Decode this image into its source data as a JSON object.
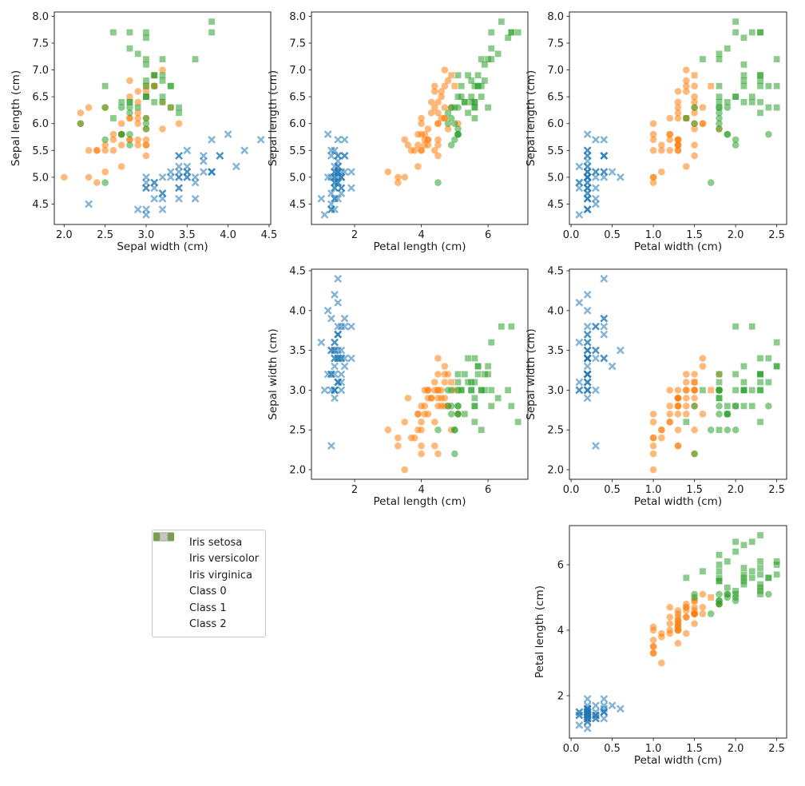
{
  "chart_data": {
    "type": "scatter",
    "description": "Iris dataset pair plot: color = true species, marker = cluster class",
    "alpha": 0.55,
    "species_names": [
      "Iris setosa",
      "Iris versicolor",
      "Iris virginica"
    ],
    "species_colors": [
      "#1f77b4",
      "#ff7f0e",
      "#2ca02c"
    ],
    "class_markers": [
      "circle",
      "x",
      "square"
    ],
    "features": {
      "sepal_length": {
        "label": "Sepal length (cm)",
        "lim": [
          4.12,
          8.08
        ],
        "ticks": [
          4.5,
          5.0,
          5.5,
          6.0,
          6.5,
          7.0,
          7.5,
          8.0
        ],
        "tick_labels": [
          "4.5",
          "5.0",
          "5.5",
          "6.0",
          "6.5",
          "7.0",
          "7.5",
          "8.0"
        ]
      },
      "sepal_width": {
        "label": "Sepal width (cm)",
        "lim": [
          1.88,
          4.52
        ],
        "ticks": [
          2.0,
          2.5,
          3.0,
          3.5,
          4.0,
          4.5
        ],
        "tick_labels": [
          "2.0",
          "2.5",
          "3.0",
          "3.5",
          "4.0",
          "4.5"
        ]
      },
      "petal_length": {
        "label": "Petal length (cm)",
        "lim": [
          0.705,
          7.195
        ],
        "ticks": [
          2,
          4,
          6
        ],
        "tick_labels": [
          "2",
          "4",
          "6"
        ]
      },
      "petal_width": {
        "label": "Petal width (cm)",
        "lim": [
          -0.02,
          2.62
        ],
        "ticks": [
          0.0,
          0.5,
          1.0,
          1.5,
          2.0,
          2.5
        ],
        "tick_labels": [
          "0.0",
          "0.5",
          "1.0",
          "1.5",
          "2.0",
          "2.5"
        ]
      }
    },
    "panels": [
      {
        "x_feature": "sepal_width",
        "y_feature": "sepal_length"
      },
      {
        "x_feature": "petal_length",
        "y_feature": "sepal_length"
      },
      {
        "x_feature": "petal_width",
        "y_feature": "sepal_length"
      },
      {
        "x_feature": "petal_length",
        "y_feature": "sepal_width"
      },
      {
        "x_feature": "petal_width",
        "y_feature": "sepal_width"
      },
      {
        "x_feature": "petal_width",
        "y_feature": "petal_length"
      }
    ],
    "legend": {
      "entries": [
        {
          "label": "Iris setosa",
          "type": "patch",
          "color": "#1f77b4"
        },
        {
          "label": "Iris versicolor",
          "type": "patch",
          "color": "#ff7f0e"
        },
        {
          "label": "Iris virginica",
          "type": "patch",
          "color": "#2ca02c"
        },
        {
          "label": "Class 0",
          "type": "marker",
          "marker": "circle",
          "color": "#c6c6c6"
        },
        {
          "label": "Class 1",
          "type": "marker",
          "marker": "x",
          "color": "#c6c6c6"
        },
        {
          "label": "Class 2",
          "type": "marker",
          "marker": "square",
          "color": "#c6c6c6"
        }
      ]
    },
    "points": {
      "sepal_length": [
        5.1,
        4.9,
        4.7,
        4.6,
        5.0,
        5.4,
        4.6,
        5.0,
        4.4,
        4.9,
        5.4,
        4.8,
        4.8,
        4.3,
        5.8,
        5.7,
        5.4,
        5.1,
        5.7,
        5.1,
        5.4,
        5.1,
        4.6,
        5.1,
        4.8,
        5.0,
        5.0,
        5.2,
        5.2,
        4.7,
        4.8,
        5.4,
        5.2,
        5.5,
        4.9,
        5.0,
        5.5,
        4.9,
        4.4,
        5.1,
        5.0,
        4.5,
        4.4,
        5.0,
        5.1,
        4.8,
        5.1,
        4.6,
        5.3,
        5.0,
        7.0,
        6.4,
        6.9,
        5.5,
        6.5,
        5.7,
        6.3,
        4.9,
        6.6,
        5.2,
        5.0,
        5.9,
        6.0,
        6.1,
        5.6,
        6.7,
        5.6,
        5.8,
        6.2,
        5.6,
        5.9,
        6.1,
        6.3,
        6.1,
        6.4,
        6.6,
        6.8,
        6.7,
        6.0,
        5.7,
        5.5,
        5.5,
        5.8,
        6.0,
        5.4,
        6.0,
        6.7,
        6.3,
        5.6,
        5.5,
        5.5,
        6.1,
        5.8,
        5.0,
        5.6,
        5.7,
        5.7,
        6.2,
        5.1,
        5.7,
        6.3,
        5.8,
        7.1,
        6.3,
        6.5,
        7.6,
        4.9,
        7.3,
        6.7,
        7.2,
        6.5,
        6.4,
        6.8,
        5.7,
        5.8,
        6.4,
        6.5,
        7.7,
        7.7,
        6.0,
        6.9,
        5.6,
        7.7,
        6.3,
        6.7,
        7.2,
        6.2,
        6.1,
        6.4,
        7.2,
        7.4,
        7.9,
        6.4,
        6.3,
        6.1,
        7.7,
        6.3,
        6.4,
        6.0,
        6.9,
        6.7,
        6.9,
        5.8,
        6.8,
        6.7,
        6.7,
        6.3,
        6.5,
        6.2,
        5.9
      ],
      "sepal_width": [
        3.5,
        3.0,
        3.2,
        3.1,
        3.6,
        3.9,
        3.4,
        3.4,
        2.9,
        3.1,
        3.7,
        3.4,
        3.0,
        3.0,
        4.0,
        4.4,
        3.9,
        3.5,
        3.8,
        3.8,
        3.4,
        3.7,
        3.6,
        3.3,
        3.4,
        3.0,
        3.4,
        3.5,
        3.4,
        3.2,
        3.1,
        3.4,
        4.1,
        4.2,
        3.1,
        3.2,
        3.5,
        3.6,
        3.0,
        3.4,
        3.5,
        2.3,
        3.2,
        3.5,
        3.8,
        3.0,
        3.8,
        3.2,
        3.7,
        3.3,
        3.2,
        3.2,
        3.1,
        2.3,
        2.8,
        2.8,
        3.3,
        2.4,
        2.9,
        2.7,
        2.0,
        3.0,
        2.2,
        2.9,
        2.9,
        3.1,
        3.0,
        2.7,
        2.2,
        2.5,
        3.2,
        2.8,
        2.5,
        2.8,
        2.9,
        3.0,
        2.8,
        3.0,
        2.9,
        2.6,
        2.4,
        2.4,
        2.7,
        2.7,
        3.0,
        3.4,
        3.1,
        2.3,
        3.0,
        2.5,
        2.6,
        3.0,
        2.6,
        2.3,
        2.7,
        3.0,
        2.9,
        2.9,
        2.5,
        2.8,
        3.3,
        2.7,
        3.0,
        2.9,
        3.0,
        3.0,
        2.5,
        2.9,
        2.5,
        3.6,
        3.2,
        2.7,
        3.0,
        2.5,
        2.8,
        3.2,
        3.0,
        3.8,
        2.6,
        2.2,
        3.2,
        2.8,
        2.8,
        2.7,
        3.3,
        3.2,
        2.8,
        3.0,
        2.8,
        3.0,
        2.8,
        3.8,
        2.8,
        2.8,
        2.6,
        3.0,
        3.4,
        3.1,
        3.0,
        3.1,
        3.1,
        3.1,
        2.7,
        3.2,
        3.3,
        3.0,
        2.5,
        3.0,
        3.4,
        3.0
      ],
      "petal_length": [
        1.4,
        1.4,
        1.3,
        1.5,
        1.4,
        1.7,
        1.4,
        1.5,
        1.4,
        1.5,
        1.5,
        1.6,
        1.4,
        1.1,
        1.2,
        1.5,
        1.3,
        1.4,
        1.7,
        1.5,
        1.7,
        1.5,
        1.0,
        1.7,
        1.9,
        1.6,
        1.6,
        1.5,
        1.4,
        1.6,
        1.6,
        1.5,
        1.5,
        1.4,
        1.5,
        1.2,
        1.3,
        1.4,
        1.3,
        1.5,
        1.3,
        1.3,
        1.3,
        1.6,
        1.9,
        1.4,
        1.6,
        1.4,
        1.5,
        1.4,
        4.7,
        4.5,
        4.9,
        4.0,
        4.6,
        4.5,
        4.7,
        3.3,
        4.6,
        3.9,
        3.5,
        4.2,
        4.0,
        4.7,
        3.6,
        4.4,
        4.5,
        4.1,
        4.5,
        3.9,
        4.8,
        4.0,
        4.9,
        4.7,
        4.3,
        4.4,
        4.8,
        5.0,
        4.5,
        3.5,
        3.8,
        3.7,
        3.9,
        5.1,
        4.5,
        4.5,
        4.7,
        4.4,
        4.1,
        4.0,
        4.4,
        4.6,
        4.0,
        3.3,
        4.2,
        4.2,
        4.2,
        4.3,
        3.0,
        4.1,
        6.0,
        5.1,
        5.9,
        5.6,
        5.8,
        6.6,
        4.5,
        6.3,
        5.8,
        6.1,
        5.1,
        5.3,
        5.5,
        5.0,
        5.1,
        5.3,
        5.5,
        6.7,
        6.9,
        5.0,
        5.7,
        4.9,
        6.7,
        4.9,
        5.7,
        6.0,
        4.8,
        4.9,
        5.6,
        5.8,
        6.1,
        6.4,
        5.6,
        5.1,
        5.6,
        6.1,
        5.6,
        5.5,
        4.8,
        5.4,
        5.6,
        5.1,
        5.1,
        5.9,
        5.7,
        5.2,
        5.0,
        5.2,
        5.4,
        5.1
      ],
      "petal_width": [
        0.2,
        0.2,
        0.2,
        0.2,
        0.2,
        0.4,
        0.3,
        0.2,
        0.2,
        0.1,
        0.2,
        0.2,
        0.1,
        0.1,
        0.2,
        0.4,
        0.4,
        0.3,
        0.3,
        0.3,
        0.2,
        0.4,
        0.2,
        0.5,
        0.2,
        0.2,
        0.4,
        0.2,
        0.2,
        0.2,
        0.2,
        0.4,
        0.1,
        0.2,
        0.2,
        0.2,
        0.2,
        0.1,
        0.2,
        0.2,
        0.3,
        0.3,
        0.2,
        0.6,
        0.4,
        0.3,
        0.2,
        0.2,
        0.2,
        0.2,
        1.4,
        1.5,
        1.5,
        1.3,
        1.5,
        1.3,
        1.6,
        1.0,
        1.3,
        1.4,
        1.0,
        1.5,
        1.0,
        1.4,
        1.3,
        1.4,
        1.5,
        1.0,
        1.5,
        1.1,
        1.8,
        1.3,
        1.5,
        1.2,
        1.3,
        1.4,
        1.4,
        1.7,
        1.5,
        1.0,
        1.1,
        1.0,
        1.2,
        1.6,
        1.5,
        1.6,
        1.5,
        1.3,
        1.3,
        1.3,
        1.2,
        1.4,
        1.2,
        1.0,
        1.3,
        1.2,
        1.3,
        1.3,
        1.1,
        1.3,
        2.5,
        1.9,
        2.1,
        1.8,
        2.2,
        2.1,
        1.7,
        1.8,
        1.8,
        2.5,
        2.0,
        1.9,
        2.1,
        2.0,
        2.4,
        2.3,
        1.8,
        2.2,
        2.3,
        1.5,
        2.3,
        2.0,
        2.0,
        1.8,
        2.1,
        1.8,
        1.8,
        1.8,
        2.1,
        1.6,
        1.9,
        2.0,
        2.2,
        1.5,
        1.4,
        2.3,
        2.4,
        1.8,
        1.8,
        2.1,
        2.4,
        2.3,
        1.9,
        2.3,
        2.5,
        2.3,
        1.9,
        2.0,
        2.3,
        1.8
      ],
      "species": [
        0,
        0,
        0,
        0,
        0,
        0,
        0,
        0,
        0,
        0,
        0,
        0,
        0,
        0,
        0,
        0,
        0,
        0,
        0,
        0,
        0,
        0,
        0,
        0,
        0,
        0,
        0,
        0,
        0,
        0,
        0,
        0,
        0,
        0,
        0,
        0,
        0,
        0,
        0,
        0,
        0,
        0,
        0,
        0,
        0,
        0,
        0,
        0,
        0,
        0,
        1,
        1,
        1,
        1,
        1,
        1,
        1,
        1,
        1,
        1,
        1,
        1,
        1,
        1,
        1,
        1,
        1,
        1,
        1,
        1,
        1,
        1,
        1,
        1,
        1,
        1,
        1,
        1,
        1,
        1,
        1,
        1,
        1,
        1,
        1,
        1,
        1,
        1,
        1,
        1,
        1,
        1,
        1,
        1,
        1,
        1,
        1,
        1,
        1,
        1,
        2,
        2,
        2,
        2,
        2,
        2,
        2,
        2,
        2,
        2,
        2,
        2,
        2,
        2,
        2,
        2,
        2,
        2,
        2,
        2,
        2,
        2,
        2,
        2,
        2,
        2,
        2,
        2,
        2,
        2,
        2,
        2,
        2,
        2,
        2,
        2,
        2,
        2,
        2,
        2,
        2,
        2,
        2,
        2,
        2,
        2,
        2,
        2,
        2,
        2
      ],
      "cluster": [
        1,
        1,
        1,
        1,
        1,
        1,
        1,
        1,
        1,
        1,
        1,
        1,
        1,
        1,
        1,
        1,
        1,
        1,
        1,
        1,
        1,
        1,
        1,
        1,
        1,
        1,
        1,
        1,
        1,
        1,
        1,
        1,
        1,
        1,
        1,
        1,
        1,
        1,
        1,
        1,
        1,
        1,
        1,
        1,
        1,
        1,
        1,
        1,
        1,
        1,
        0,
        0,
        2,
        0,
        0,
        0,
        0,
        0,
        0,
        0,
        0,
        0,
        0,
        0,
        0,
        0,
        0,
        0,
        0,
        0,
        0,
        0,
        0,
        0,
        0,
        0,
        0,
        2,
        0,
        0,
        0,
        0,
        0,
        0,
        0,
        0,
        0,
        0,
        0,
        0,
        0,
        0,
        0,
        0,
        0,
        0,
        0,
        0,
        0,
        0,
        2,
        0,
        2,
        2,
        2,
        2,
        0,
        2,
        2,
        2,
        2,
        2,
        2,
        0,
        0,
        2,
        2,
        2,
        2,
        0,
        2,
        0,
        2,
        0,
        2,
        2,
        0,
        0,
        2,
        2,
        2,
        2,
        2,
        0,
        2,
        2,
        2,
        2,
        0,
        2,
        2,
        2,
        0,
        2,
        2,
        2,
        0,
        2,
        2,
        0
      ]
    }
  }
}
